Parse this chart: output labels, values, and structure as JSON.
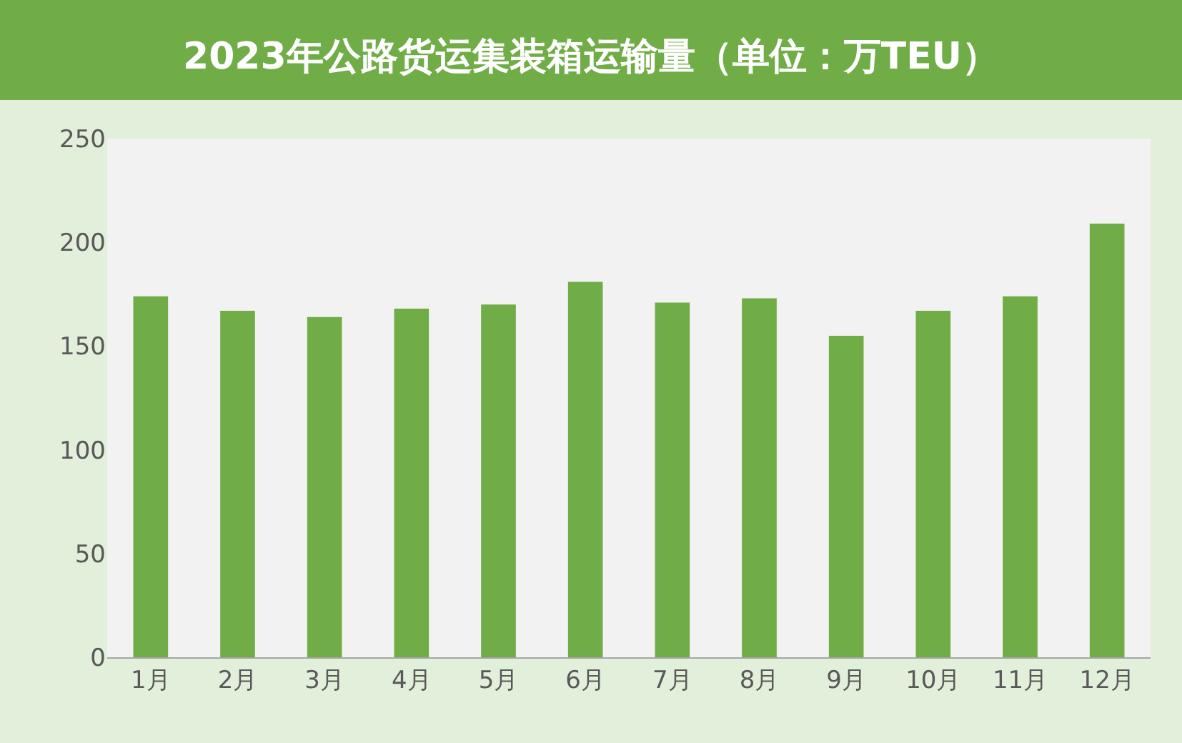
{
  "chart_data": {
    "type": "bar",
    "title": "2023年公路货运集装箱运输量（单位：万TEU）",
    "categories": [
      "1月",
      "2月",
      "3月",
      "4月",
      "5月",
      "6月",
      "7月",
      "8月",
      "9月",
      "10月",
      "11月",
      "12月"
    ],
    "values": [
      174,
      167,
      164,
      168,
      170,
      181,
      171,
      173,
      155,
      167,
      174,
      209
    ],
    "color": "#70ad47",
    "ylim": [
      0,
      250
    ],
    "yticks": [
      0,
      50,
      100,
      150,
      200,
      250
    ],
    "grid": false,
    "legend": false
  }
}
